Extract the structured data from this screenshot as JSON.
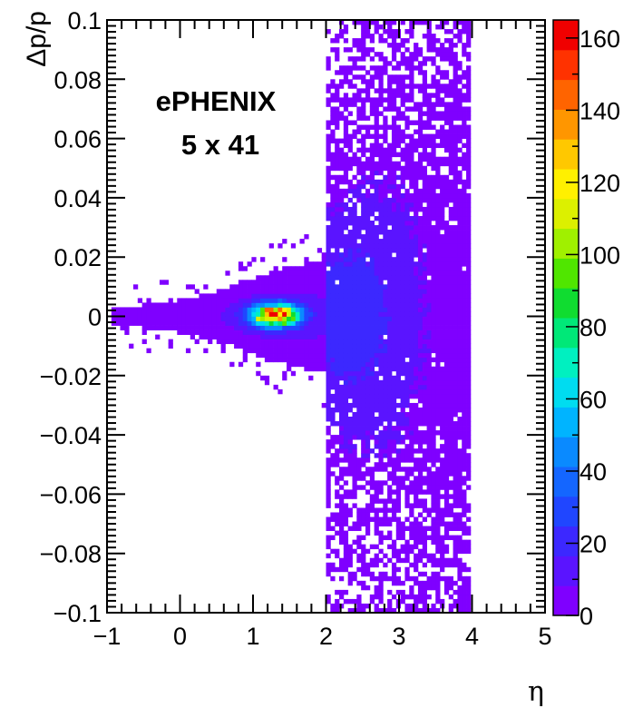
{
  "chart_data": {
    "type": "heatmap",
    "xlabel": "η",
    "ylabel": "Δp/p",
    "xlim": [
      -1,
      5
    ],
    "ylim": [
      -0.1,
      0.1
    ],
    "x_ticks": [
      "−1",
      "0",
      "1",
      "2",
      "3",
      "4",
      "5"
    ],
    "y_ticks": [
      "0.1",
      "0.08",
      "0.06",
      "0.04",
      "0.02",
      "0",
      "−0.02",
      "−0.04",
      "−0.06",
      "−0.08",
      "−0.1"
    ],
    "zlim": [
      0,
      165
    ],
    "z_ticks": [
      "0",
      "20",
      "40",
      "60",
      "80",
      "100",
      "120",
      "140",
      "160"
    ],
    "annotations": [
      "ePHENIX",
      "5 x 41"
    ],
    "regions": [
      {
        "description": "central core",
        "x_range": [
          0.9,
          1.9
        ],
        "y_range": [
          -0.006,
          0.006
        ],
        "peak_x": 1.3,
        "peak_y": 0.0005,
        "peak_z": 160
      },
      {
        "description": "forward band",
        "x_range": [
          2.0,
          4.0
        ],
        "y_range": [
          -0.1,
          0.1
        ],
        "typical_z": 5
      }
    ],
    "palette": [
      "#7f00ff",
      "#5a14ff",
      "#3c28ff",
      "#2046ff",
      "#1466ff",
      "#0a8aff",
      "#00b4ff",
      "#00dcf0",
      "#00f0c0",
      "#00e878",
      "#10dc30",
      "#50e600",
      "#a0f000",
      "#dcf000",
      "#fff000",
      "#ffc800",
      "#ff9600",
      "#ff6400",
      "#ff3200",
      "#f00000"
    ]
  }
}
